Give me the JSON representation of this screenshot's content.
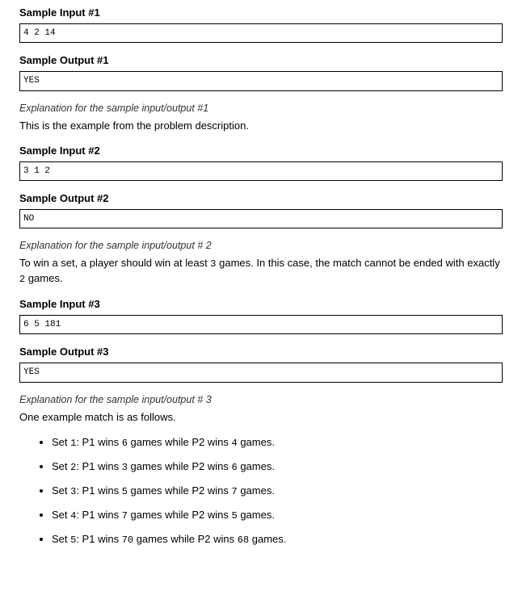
{
  "samples": [
    {
      "input_heading": "Sample Input #1",
      "input_value": "4 2 14",
      "output_heading": "Sample Output #1",
      "output_value": "YES",
      "explain_heading": "Explanation for the sample input/output #1",
      "explain_text": "This is the example from the problem description."
    },
    {
      "input_heading": "Sample Input #2",
      "input_value": "3 1 2",
      "output_heading": "Sample Output #2",
      "output_value": "NO",
      "explain_heading": "Explanation for the sample input/output # 2",
      "explain_text_pre": "To win a set, a player should win at least ",
      "explain_n1": "3",
      "explain_text_mid": " games. In this case, the match cannot be ended with exactly ",
      "explain_n2": "2",
      "explain_text_post": " games."
    },
    {
      "input_heading": "Sample Input #3",
      "input_value": "6 5 181",
      "output_heading": "Sample Output #3",
      "output_value": "YES",
      "explain_heading": "Explanation for the sample input/output # 3",
      "explain_text": "One example match is as follows.",
      "sets": [
        {
          "a": "Set ",
          "n1": "1",
          "b": ": P1 wins ",
          "n2": "6",
          "c": " games while P2 wins ",
          "n3": "4",
          "d": " games."
        },
        {
          "a": "Set ",
          "n1": "2",
          "b": ": P1 wins ",
          "n2": "3",
          "c": " games while P2 wins ",
          "n3": "6",
          "d": " games."
        },
        {
          "a": "Set ",
          "n1": "3",
          "b": ": P1 wins ",
          "n2": "5",
          "c": " games while P2 wins ",
          "n3": "7",
          "d": " games."
        },
        {
          "a": "Set ",
          "n1": "4",
          "b": ": P1 wins ",
          "n2": "7",
          "c": " games while P2 wins ",
          "n3": "5",
          "d": " games."
        },
        {
          "a": "Set ",
          "n1": "5",
          "b": ": P1 wins ",
          "n2": "70",
          "c": " games while P2 wins ",
          "n3": "68",
          "d": " games."
        }
      ]
    }
  ]
}
